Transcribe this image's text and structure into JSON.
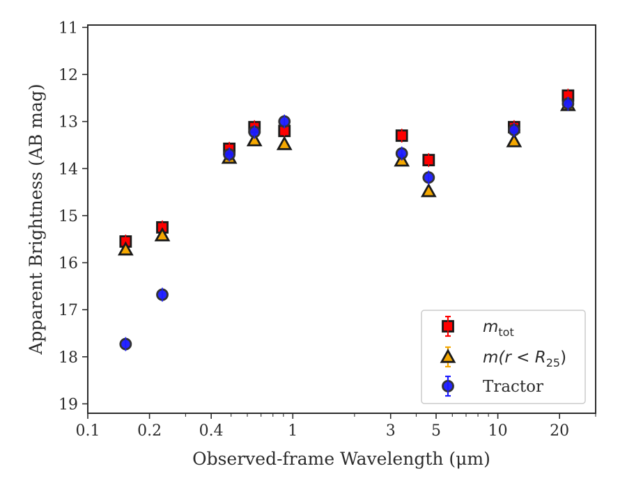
{
  "chart_data": {
    "type": "scatter",
    "title": "",
    "xlabel": "Observed-frame Wavelength (μm)",
    "ylabel": "Apparent Brightness (AB mag)",
    "xscale": "log",
    "xlim": [
      0.1,
      30
    ],
    "ylim": [
      19.2,
      10.95
    ],
    "y_inverted": true,
    "x_ticks": [
      0.1,
      0.2,
      0.4,
      1,
      3,
      5,
      10,
      20
    ],
    "x_tick_labels": [
      "0.1",
      "0.2",
      "0.4",
      "1",
      "3",
      "5",
      "10",
      "20"
    ],
    "y_ticks": [
      11,
      12,
      13,
      14,
      15,
      16,
      17,
      18,
      19
    ],
    "y_tick_labels": [
      "11",
      "12",
      "13",
      "14",
      "15",
      "16",
      "17",
      "18",
      "19"
    ],
    "grid": false,
    "legend_position": "lower-right",
    "series": [
      {
        "key": "mtot",
        "name": "m_tot",
        "label_main": "m",
        "label_sub": "tot",
        "marker": "square",
        "color": "#ff0000",
        "edge": "#1a1a1a",
        "x": [
          0.153,
          0.231,
          0.49,
          0.65,
          0.91,
          3.4,
          4.6,
          12.0,
          22.0
        ],
        "y": [
          15.55,
          15.25,
          13.58,
          13.12,
          13.2,
          13.3,
          13.82,
          13.12,
          12.45
        ]
      },
      {
        "key": "mr25",
        "name": "m(r < R25)",
        "label_main": "m(r < R",
        "label_sub": "25",
        "label_tail": ")",
        "marker": "triangle",
        "color": "#f5a800",
        "edge": "#1a1a1a",
        "x": [
          0.153,
          0.231,
          0.49,
          0.65,
          0.91,
          3.4,
          4.6,
          12.0,
          22.0
        ],
        "y": [
          15.72,
          15.42,
          13.77,
          13.4,
          13.48,
          13.83,
          14.48,
          13.42,
          12.65
        ]
      },
      {
        "key": "tractor",
        "name": "Tractor",
        "label_main": "Tractor",
        "marker": "circle",
        "color": "#1a1aff",
        "edge": "#333333",
        "x": [
          0.153,
          0.231,
          0.49,
          0.65,
          0.91,
          3.4,
          4.6,
          12.0,
          22.0
        ],
        "y": [
          17.73,
          16.68,
          13.7,
          13.22,
          13.0,
          13.68,
          14.19,
          13.18,
          12.62
        ]
      }
    ]
  }
}
